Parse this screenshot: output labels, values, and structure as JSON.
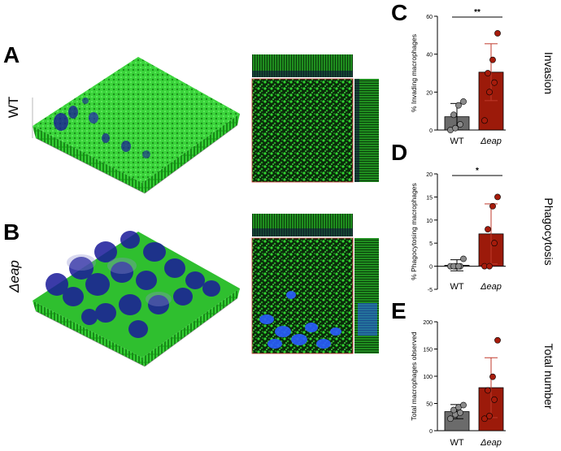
{
  "panels": {
    "A": {
      "letter": "A",
      "row_label": "WT"
    },
    "B": {
      "letter": "B",
      "row_label": "Δeap"
    }
  },
  "colors": {
    "wt_bar": "#6b6b6b",
    "eap_bar": "#9c1a0a",
    "eap_err": "#c0392b",
    "biofilm_green": "#2fd12f",
    "macrophage_blue": "#1a1a9a"
  },
  "chart_data": [
    {
      "type": "bar",
      "panel": "C",
      "title": "Invasion",
      "ylabel": "% Invading macrophages",
      "categories": [
        "WT",
        "Δeap"
      ],
      "values": [
        7,
        30.5
      ],
      "errors": [
        7,
        15
      ],
      "points": [
        [
          0,
          1,
          3,
          8,
          13,
          15
        ],
        [
          5,
          20,
          25,
          30,
          37,
          51
        ]
      ],
      "ylim": [
        0,
        60
      ],
      "yticks": [
        0,
        20,
        40,
        60
      ],
      "significance": "**"
    },
    {
      "type": "bar",
      "panel": "D",
      "title": "Phagocytosis",
      "ylabel": "% Phagocytosing macrophages",
      "categories": [
        "WT",
        "Δeap"
      ],
      "values": [
        0.2,
        7
      ],
      "errors": [
        1.2,
        6.5
      ],
      "points": [
        [
          0,
          0,
          0,
          0,
          0,
          1.6
        ],
        [
          0,
          0,
          5,
          8,
          13,
          15
        ]
      ],
      "ylim": [
        -5,
        20
      ],
      "yticks": [
        -5,
        0,
        5,
        10,
        15,
        20
      ],
      "significance": "*"
    },
    {
      "type": "bar",
      "panel": "E",
      "title": "Total number",
      "ylabel": "Total macrophages observed",
      "categories": [
        "WT",
        "Δeap"
      ],
      "values": [
        35,
        79
      ],
      "errors": [
        13,
        55
      ],
      "points": [
        [
          22,
          30,
          33,
          38,
          43,
          47
        ],
        [
          22,
          27,
          57,
          74,
          99,
          166
        ]
      ],
      "ylim": [
        0,
        200
      ],
      "yticks": [
        0,
        50,
        100,
        150,
        200
      ],
      "significance": ""
    }
  ]
}
